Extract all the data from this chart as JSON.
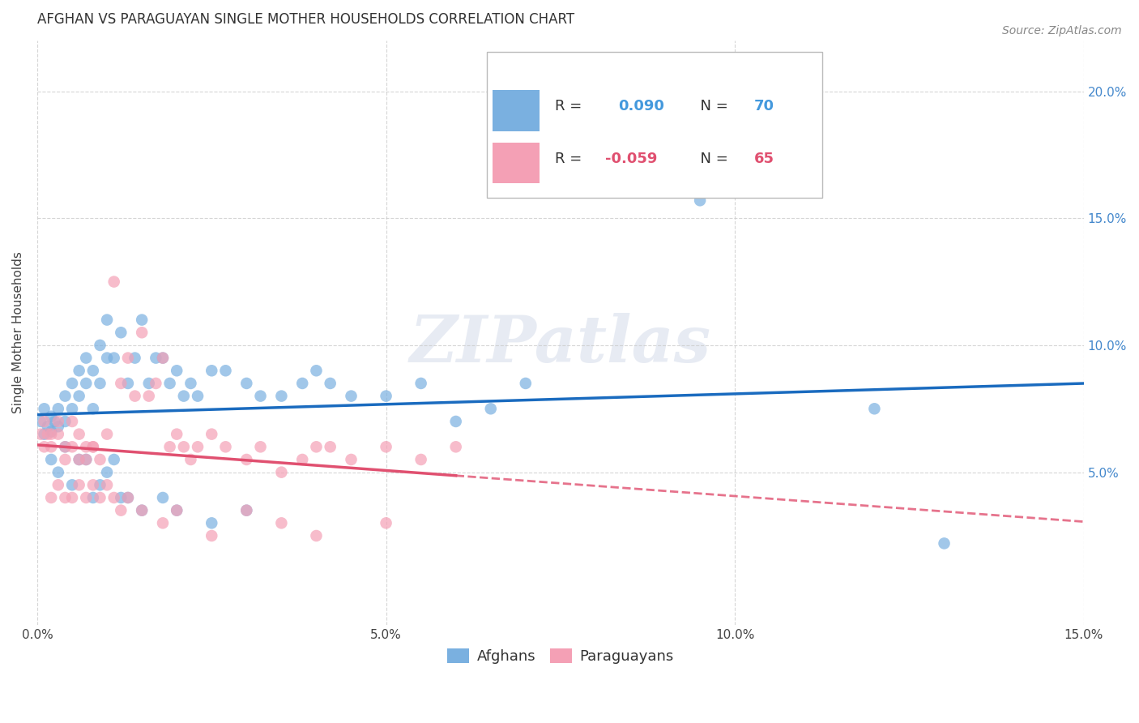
{
  "title": "AFGHAN VS PARAGUAYAN SINGLE MOTHER HOUSEHOLDS CORRELATION CHART",
  "source": "Source: ZipAtlas.com",
  "ylabel": "Single Mother Households",
  "xlim": [
    0,
    0.15
  ],
  "ylim": [
    -0.01,
    0.22
  ],
  "xticks": [
    0.0,
    0.05,
    0.1,
    0.15
  ],
  "xtick_labels": [
    "0.0%",
    "5.0%",
    "10.0%",
    "15.0%"
  ],
  "yticks": [
    0.05,
    0.1,
    0.15,
    0.2
  ],
  "ytick_labels": [
    "5.0%",
    "10.0%",
    "15.0%",
    "20.0%"
  ],
  "afghan_color": "#7ab0e0",
  "paraguayan_color": "#f4a0b5",
  "afghan_line_color": "#1a6bbf",
  "paraguayan_line_color": "#e05070",
  "watermark": "ZIPatlas",
  "afghans_x": [
    0.0005,
    0.001,
    0.0015,
    0.001,
    0.002,
    0.0025,
    0.002,
    0.003,
    0.003,
    0.004,
    0.004,
    0.005,
    0.005,
    0.006,
    0.006,
    0.007,
    0.007,
    0.008,
    0.008,
    0.009,
    0.009,
    0.01,
    0.01,
    0.011,
    0.012,
    0.013,
    0.014,
    0.015,
    0.016,
    0.017,
    0.018,
    0.019,
    0.02,
    0.021,
    0.022,
    0.023,
    0.025,
    0.027,
    0.03,
    0.032,
    0.035,
    0.038,
    0.04,
    0.042,
    0.045,
    0.05,
    0.055,
    0.06,
    0.065,
    0.07,
    0.002,
    0.003,
    0.004,
    0.005,
    0.006,
    0.007,
    0.008,
    0.009,
    0.01,
    0.011,
    0.012,
    0.013,
    0.015,
    0.018,
    0.02,
    0.025,
    0.03,
    0.095,
    0.12,
    0.13
  ],
  "afghans_y": [
    0.07,
    0.075,
    0.068,
    0.065,
    0.072,
    0.07,
    0.066,
    0.075,
    0.068,
    0.08,
    0.07,
    0.085,
    0.075,
    0.09,
    0.08,
    0.095,
    0.085,
    0.09,
    0.075,
    0.1,
    0.085,
    0.095,
    0.11,
    0.095,
    0.105,
    0.085,
    0.095,
    0.11,
    0.085,
    0.095,
    0.095,
    0.085,
    0.09,
    0.08,
    0.085,
    0.08,
    0.09,
    0.09,
    0.085,
    0.08,
    0.08,
    0.085,
    0.09,
    0.085,
    0.08,
    0.08,
    0.085,
    0.07,
    0.075,
    0.085,
    0.055,
    0.05,
    0.06,
    0.045,
    0.055,
    0.055,
    0.04,
    0.045,
    0.05,
    0.055,
    0.04,
    0.04,
    0.035,
    0.04,
    0.035,
    0.03,
    0.035,
    0.157,
    0.075,
    0.022
  ],
  "paraguayans_x": [
    0.0005,
    0.001,
    0.0015,
    0.001,
    0.002,
    0.002,
    0.003,
    0.003,
    0.004,
    0.004,
    0.005,
    0.005,
    0.006,
    0.006,
    0.007,
    0.007,
    0.008,
    0.008,
    0.009,
    0.01,
    0.011,
    0.012,
    0.013,
    0.014,
    0.015,
    0.016,
    0.017,
    0.018,
    0.019,
    0.02,
    0.021,
    0.022,
    0.023,
    0.025,
    0.027,
    0.03,
    0.032,
    0.035,
    0.038,
    0.04,
    0.042,
    0.045,
    0.05,
    0.055,
    0.06,
    0.002,
    0.003,
    0.004,
    0.005,
    0.006,
    0.007,
    0.008,
    0.009,
    0.01,
    0.011,
    0.012,
    0.013,
    0.015,
    0.018,
    0.02,
    0.025,
    0.03,
    0.035,
    0.04,
    0.05
  ],
  "paraguayans_y": [
    0.065,
    0.06,
    0.065,
    0.07,
    0.06,
    0.065,
    0.07,
    0.065,
    0.055,
    0.06,
    0.06,
    0.07,
    0.055,
    0.065,
    0.06,
    0.055,
    0.06,
    0.06,
    0.055,
    0.065,
    0.125,
    0.085,
    0.095,
    0.08,
    0.105,
    0.08,
    0.085,
    0.095,
    0.06,
    0.065,
    0.06,
    0.055,
    0.06,
    0.065,
    0.06,
    0.055,
    0.06,
    0.05,
    0.055,
    0.06,
    0.06,
    0.055,
    0.06,
    0.055,
    0.06,
    0.04,
    0.045,
    0.04,
    0.04,
    0.045,
    0.04,
    0.045,
    0.04,
    0.045,
    0.04,
    0.035,
    0.04,
    0.035,
    0.03,
    0.035,
    0.025,
    0.035,
    0.03,
    0.025,
    0.03
  ],
  "background_color": "#ffffff",
  "grid_color": "#cccccc",
  "title_fontsize": 12,
  "axis_label_fontsize": 11,
  "tick_fontsize": 11,
  "legend_fontsize": 13,
  "source_fontsize": 10
}
